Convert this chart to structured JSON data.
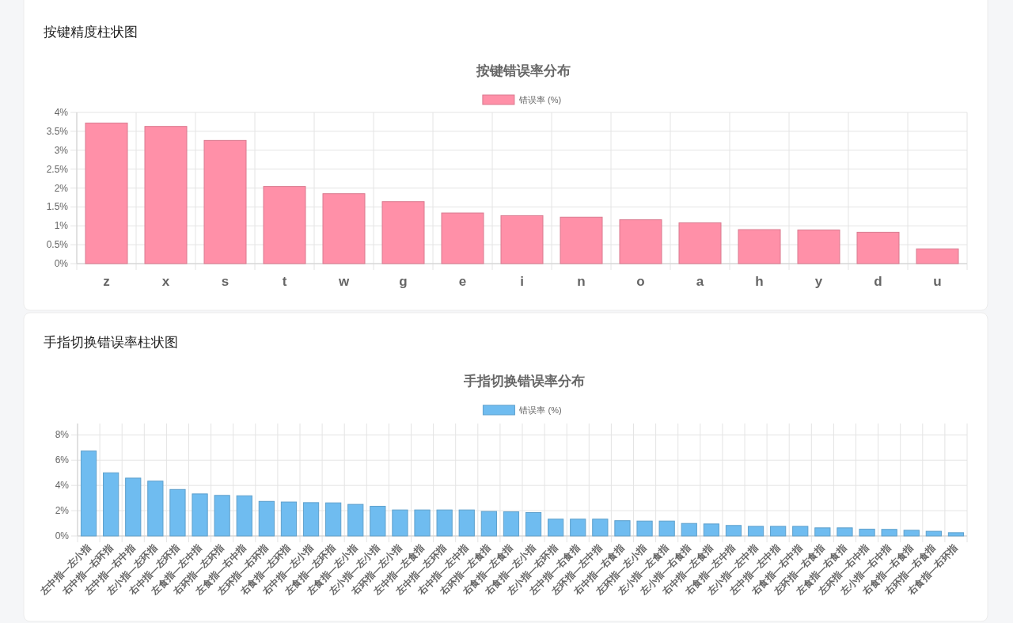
{
  "chart_data": [
    {
      "type": "bar",
      "title": "按键精度柱状图",
      "subtitle": "按键错误率分布",
      "legend": "top",
      "grid": true,
      "categories": [
        "z",
        "x",
        "s",
        "t",
        "w",
        "g",
        "e",
        "i",
        "n",
        "o",
        "a",
        "h",
        "y",
        "d",
        "u"
      ],
      "series": [
        {
          "name": "错误率 (%)",
          "color": "#ff90a8",
          "values": [
            3.73,
            3.64,
            3.27,
            2.05,
            1.86,
            1.65,
            1.35,
            1.28,
            1.24,
            1.17,
            1.09,
            0.91,
            0.9,
            0.84,
            0.4
          ]
        }
      ],
      "ylim": [
        0,
        4
      ],
      "yticks": [
        {
          "value": 0,
          "label": "0%"
        },
        {
          "value": 0.5,
          "label": "0.5%"
        },
        {
          "value": 1,
          "label": "1%"
        },
        {
          "value": 1.5,
          "label": "1.5%"
        },
        {
          "value": 2,
          "label": "2%"
        },
        {
          "value": 2.5,
          "label": "2.5%"
        },
        {
          "value": 3,
          "label": "3%"
        },
        {
          "value": 3.5,
          "label": "3.5%"
        },
        {
          "value": 4,
          "label": "4%"
        }
      ]
    },
    {
      "type": "bar",
      "title": "手指切换错误率柱状图",
      "subtitle": "手指切换错误率分布",
      "legend": "top",
      "grid": true,
      "categories": [
        "左中指—左小指",
        "右中指—右环指",
        "左中指—右中指",
        "左小指—左环指",
        "右中指—左环指",
        "左食指—左中指",
        "右环指—左环指",
        "左食指—右中指",
        "左环指—右环指",
        "右食指—左环指",
        "右中指—左小指",
        "左食指—左环指",
        "左食指—左小指",
        "左小指—左小指",
        "右环指—左小指",
        "左中指—左食指",
        "左中指—左环指",
        "右中指—左中指",
        "右环指—左食指",
        "右食指—左食指",
        "右食指—左小指",
        "左小指—右环指",
        "左中指—右食指",
        "左环指—左中指",
        "右中指—右食指",
        "左环指—左小指",
        "左小指—左食指",
        "左小指—右食指",
        "右中指—左食指",
        "右食指—左中指",
        "左小指—左中指",
        "左中指—左中指",
        "右食指—右中指",
        "左环指—右食指",
        "左食指—右食指",
        "左环指—右中指",
        "左小指—右中指",
        "右食指—右食指",
        "右环指—右食指",
        "右食指—右环指"
      ],
      "series": [
        {
          "name": "错误率 (%)",
          "color": "#6fbcf0",
          "values": [
            6.75,
            5.03,
            4.61,
            4.37,
            3.71,
            3.36,
            3.24,
            3.21,
            2.77,
            2.72,
            2.67,
            2.65,
            2.53,
            2.38,
            2.09,
            2.09,
            2.09,
            2.09,
            1.97,
            1.94,
            1.88,
            1.36,
            1.36,
            1.36,
            1.24,
            1.21,
            1.21,
            1.02,
            0.98,
            0.86,
            0.79,
            0.79,
            0.79,
            0.67,
            0.67,
            0.57,
            0.55,
            0.48,
            0.4,
            0.29
          ]
        }
      ],
      "ylim": [
        0,
        8.9
      ],
      "yticks": [
        {
          "value": 0,
          "label": "0%"
        },
        {
          "value": 2,
          "label": "2%"
        },
        {
          "value": 4,
          "label": "4%"
        },
        {
          "value": 6,
          "label": "6%"
        },
        {
          "value": 8,
          "label": "8%"
        }
      ]
    }
  ]
}
